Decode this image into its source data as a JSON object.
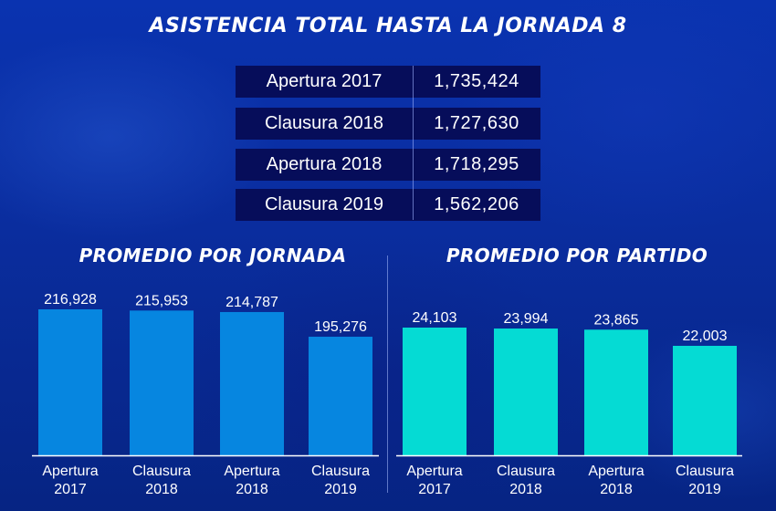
{
  "title": "ASISTENCIA TOTAL HASTA LA JORNADA 8",
  "table": {
    "rows": [
      {
        "label": "Apertura 2017",
        "value": "1,735,424"
      },
      {
        "label": "Clausura 2018",
        "value": "1,727,630"
      },
      {
        "label": "Apertura 2018",
        "value": "1,718,295"
      },
      {
        "label": "Clausura 2019",
        "value": "1,562,206"
      }
    ]
  },
  "chart_data": [
    {
      "type": "bar",
      "title": "PROMEDIO POR JORNADA",
      "categories": [
        [
          "Apertura",
          "2017"
        ],
        [
          "Clausura",
          "2018"
        ],
        [
          "Apertura",
          "2018"
        ],
        [
          "Clausura",
          "2019"
        ]
      ],
      "values": [
        216928,
        215953,
        214787,
        195276
      ],
      "value_labels": [
        "216,928",
        "215,953",
        "214,787",
        "195,276"
      ],
      "xlabel": "",
      "ylabel": "",
      "ylim": [
        101478,
        216928
      ],
      "grid": false,
      "color": "#0686e0"
    },
    {
      "type": "bar",
      "title": "PROMEDIO POR PARTIDO",
      "categories": [
        [
          "Apertura",
          "2017"
        ],
        [
          "Clausura",
          "2018"
        ],
        [
          "Apertura",
          "2018"
        ],
        [
          "Clausura",
          "2019"
        ]
      ],
      "values": [
        24103,
        23994,
        23865,
        22003
      ],
      "value_labels": [
        "24,103",
        "23,994",
        "23,865",
        "22,003"
      ],
      "xlabel": "",
      "ylabel": "",
      "ylim": [
        9403,
        24103
      ],
      "grid": false,
      "color": "#05dbd4"
    }
  ]
}
